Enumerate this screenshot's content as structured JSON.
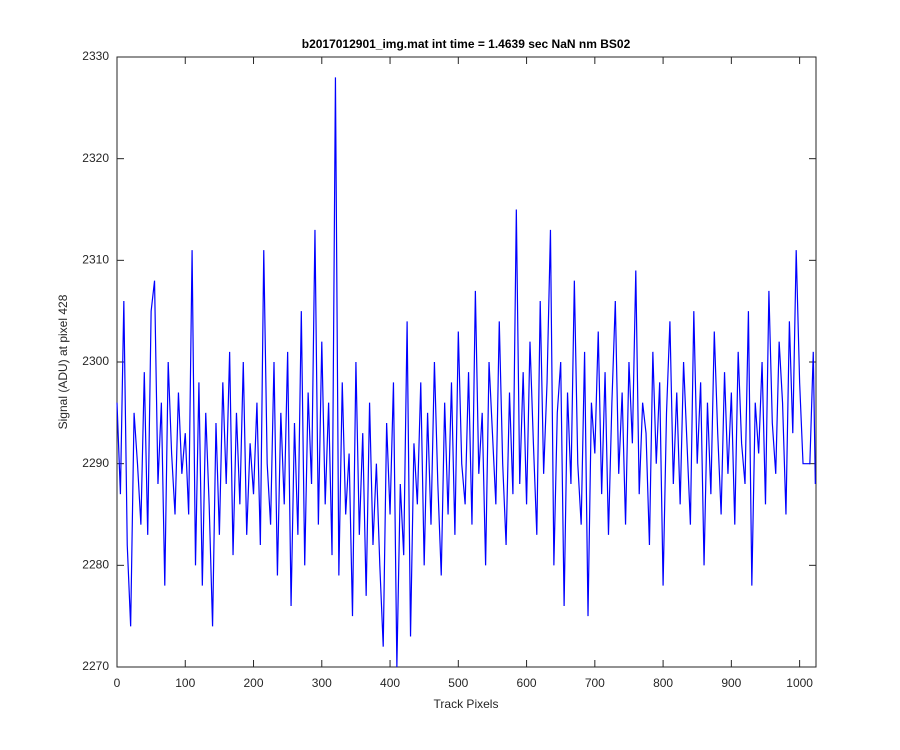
{
  "chart_data": {
    "type": "line",
    "title": "b2017012901_img.mat int time = 1.4639 sec  NaN nm BS02",
    "x_label": "Track Pixels",
    "y_label": "Signal (ADU) at pixel 428",
    "xlim": [
      0,
      1024
    ],
    "ylim": [
      2270,
      2330
    ],
    "xticks": [
      0,
      100,
      200,
      300,
      400,
      500,
      600,
      700,
      800,
      900,
      1000
    ],
    "yticks": [
      2270,
      2280,
      2290,
      2300,
      2310,
      2320,
      2330
    ],
    "grid": false,
    "series": [
      {
        "color": "#0000ff",
        "x": [
          0,
          5,
          10,
          15,
          20,
          25,
          30,
          35,
          40,
          45,
          50,
          55,
          60,
          65,
          70,
          75,
          80,
          85,
          90,
          95,
          100,
          105,
          110,
          115,
          120,
          125,
          130,
          135,
          140,
          145,
          150,
          155,
          160,
          165,
          170,
          175,
          180,
          185,
          190,
          195,
          200,
          205,
          210,
          215,
          220,
          225,
          230,
          235,
          240,
          245,
          250,
          255,
          260,
          265,
          270,
          275,
          280,
          285,
          290,
          295,
          300,
          305,
          310,
          315,
          320,
          325,
          330,
          335,
          340,
          345,
          350,
          355,
          360,
          365,
          370,
          375,
          380,
          385,
          390,
          395,
          400,
          405,
          410,
          415,
          420,
          425,
          430,
          435,
          440,
          445,
          450,
          455,
          460,
          465,
          470,
          475,
          480,
          485,
          490,
          495,
          500,
          505,
          510,
          515,
          520,
          525,
          530,
          535,
          540,
          545,
          550,
          555,
          560,
          565,
          570,
          575,
          580,
          585,
          590,
          595,
          600,
          605,
          610,
          615,
          620,
          625,
          630,
          635,
          640,
          645,
          650,
          655,
          660,
          665,
          670,
          675,
          680,
          685,
          690,
          695,
          700,
          705,
          710,
          715,
          720,
          725,
          730,
          735,
          740,
          745,
          750,
          755,
          760,
          765,
          770,
          775,
          780,
          785,
          790,
          795,
          800,
          805,
          810,
          815,
          820,
          825,
          830,
          835,
          840,
          845,
          850,
          855,
          860,
          865,
          870,
          875,
          880,
          885,
          890,
          895,
          900,
          905,
          910,
          915,
          920,
          925,
          930,
          935,
          940,
          945,
          950,
          955,
          960,
          965,
          970,
          975,
          980,
          985,
          990,
          995,
          1000,
          1005,
          1010,
          1015,
          1020,
          1023
        ],
        "values": [
          2296,
          2287,
          2306,
          2282,
          2274,
          2295,
          2290,
          2284,
          2299,
          2283,
          2305,
          2308,
          2288,
          2296,
          2278,
          2300,
          2291,
          2285,
          2297,
          2289,
          2293,
          2285,
          2311,
          2280,
          2298,
          2278,
          2295,
          2286,
          2274,
          2294,
          2283,
          2298,
          2288,
          2301,
          2281,
          2295,
          2286,
          2300,
          2283,
          2292,
          2287,
          2296,
          2282,
          2311,
          2290,
          2284,
          2300,
          2279,
          2295,
          2286,
          2301,
          2276,
          2294,
          2283,
          2305,
          2280,
          2297,
          2288,
          2313,
          2284,
          2302,
          2286,
          2296,
          2281,
          2328,
          2279,
          2298,
          2285,
          2291,
          2275,
          2300,
          2283,
          2293,
          2277,
          2296,
          2282,
          2290,
          2280,
          2272,
          2294,
          2285,
          2298,
          2270,
          2288,
          2281,
          2304,
          2273,
          2292,
          2286,
          2298,
          2280,
          2295,
          2284,
          2300,
          2288,
          2279,
          2296,
          2285,
          2298,
          2283,
          2303,
          2290,
          2286,
          2299,
          2284,
          2307,
          2289,
          2295,
          2280,
          2300,
          2293,
          2286,
          2304,
          2290,
          2282,
          2297,
          2287,
          2315,
          2288,
          2299,
          2286,
          2302,
          2292,
          2283,
          2306,
          2289,
          2298,
          2313,
          2280,
          2295,
          2300,
          2276,
          2297,
          2288,
          2308,
          2290,
          2284,
          2301,
          2275,
          2296,
          2291,
          2303,
          2287,
          2299,
          2283,
          2296,
          2306,
          2289,
          2297,
          2284,
          2300,
          2292,
          2309,
          2287,
          2296,
          2293,
          2282,
          2301,
          2290,
          2298,
          2278,
          2295,
          2304,
          2288,
          2297,
          2286,
          2300,
          2292,
          2284,
          2305,
          2290,
          2298,
          2280,
          2296,
          2287,
          2303,
          2293,
          2285,
          2299,
          2289,
          2297,
          2284,
          2301,
          2292,
          2288,
          2305,
          2278,
          2296,
          2291,
          2300,
          2286,
          2307,
          2294,
          2289,
          2302,
          2296,
          2285,
          2304,
          2293,
          2311,
          2298,
          2290,
          2290,
          2290,
          2301,
          2288
        ]
      }
    ]
  }
}
